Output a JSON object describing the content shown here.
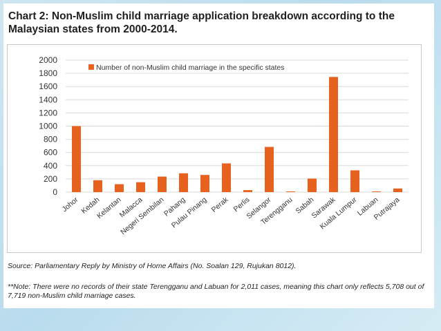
{
  "slide": {
    "title": "Chart 2: Non-Muslim child marriage application breakdown according to the Malaysian states from 2000-2014.",
    "source": "Source: Parliamentary Reply by Ministry of Home Affairs (No. Soalan 129, Rujukan 8012).",
    "note": "**Note: There were no records of their state Terengganu and Labuan for 2,011 cases, meaning this chart only reflects 5,708 out of 7,719 non-Muslim child marriage cases."
  },
  "chart_data": {
    "type": "bar",
    "categories": [
      "Johor",
      "Kedah",
      "Kelantan",
      "Malacca",
      "Negeri Sembilan",
      "Pahang",
      "Pulau Pinang",
      "Perak",
      "Perlis",
      "Selangor",
      "Terengganu",
      "Sabah",
      "Sarawak",
      "Kuala Lumpur",
      "Labuan",
      "Putrajaya"
    ],
    "series": [
      {
        "name": "Number of non-Muslim child marriage in the specific states",
        "color": "#e8621f",
        "values": [
          1000,
          180,
          120,
          150,
          235,
          285,
          260,
          435,
          30,
          685,
          10,
          205,
          1745,
          330,
          10,
          55
        ]
      }
    ],
    "ylim": [
      0,
      2000
    ],
    "yticks": [
      0,
      200,
      400,
      600,
      800,
      1000,
      1200,
      1400,
      1600,
      1800,
      2000
    ],
    "grid": true,
    "legend_position": "top-left"
  }
}
